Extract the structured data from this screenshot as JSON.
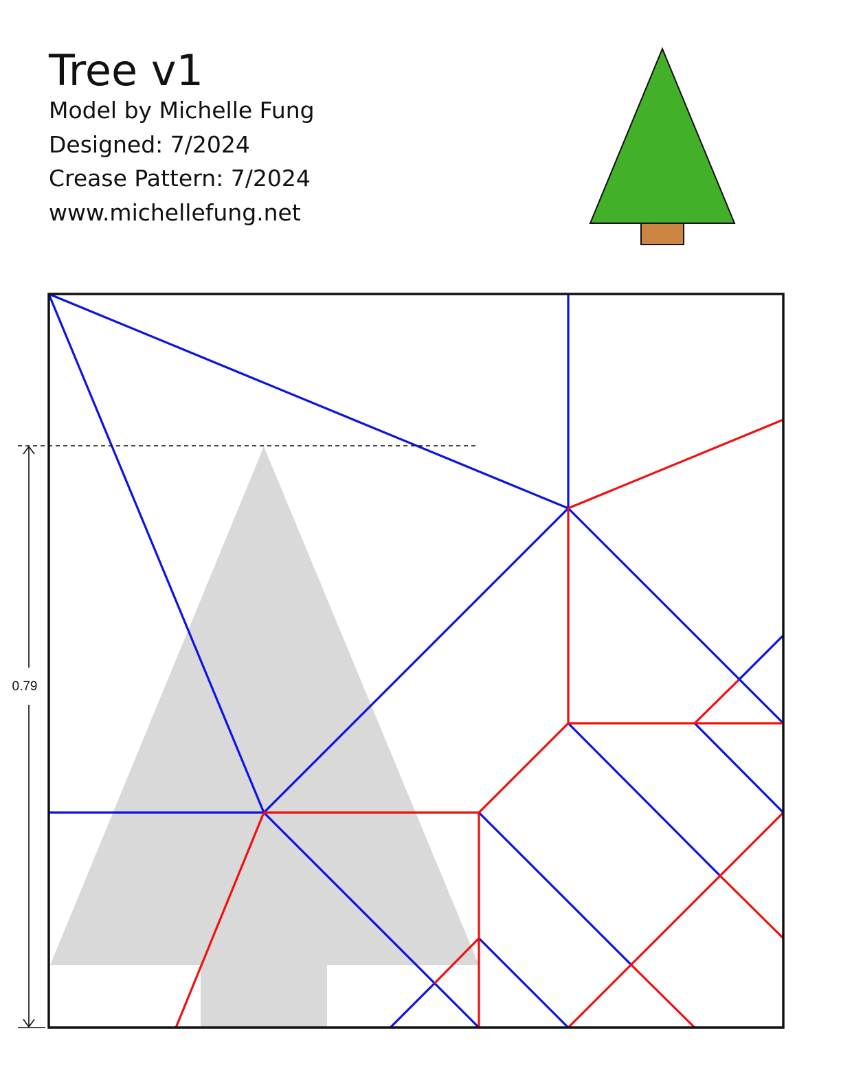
{
  "header": {
    "title": "Tree v1",
    "lines": [
      "Model by Michelle Fung",
      "Designed: 7/2024",
      "Crease Pattern: 7/2024",
      "www.michellefung.net"
    ]
  },
  "dimension": {
    "label": "0.79"
  }
}
